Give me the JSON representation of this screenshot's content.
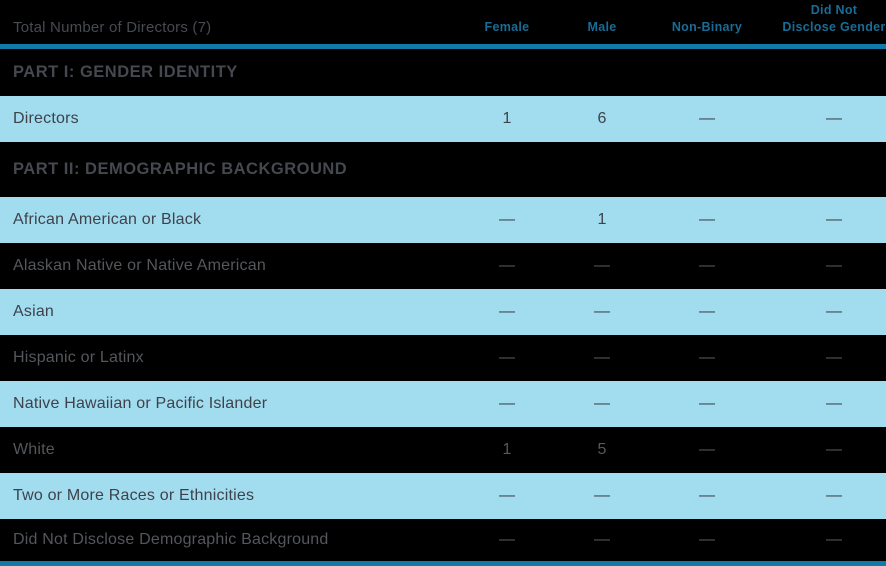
{
  "table": {
    "title": "Total Number of Directors (7)",
    "columns": [
      "Female",
      "Male",
      "Non-Binary",
      "Did Not Disclose Gender"
    ],
    "sections": [
      {
        "heading": "PART I: GENDER IDENTITY",
        "rows": [
          {
            "label": "Directors",
            "values": [
              "1",
              "6",
              "—",
              "—"
            ]
          }
        ]
      },
      {
        "heading": "PART II: DEMOGRAPHIC BACKGROUND",
        "rows": [
          {
            "label": "African American or Black",
            "values": [
              "—",
              "1",
              "—",
              "—"
            ]
          },
          {
            "label": "Alaskan Native or Native American",
            "values": [
              "—",
              "—",
              "—",
              "—"
            ]
          },
          {
            "label": "Asian",
            "values": [
              "—",
              "—",
              "—",
              "—"
            ]
          },
          {
            "label": "Hispanic or Latinx",
            "values": [
              "—",
              "—",
              "—",
              "—"
            ]
          },
          {
            "label": "Native Hawaiian or Pacific Islander",
            "values": [
              "—",
              "—",
              "—",
              "—"
            ]
          },
          {
            "label": "White",
            "values": [
              "1",
              "5",
              "—",
              "—"
            ]
          },
          {
            "label": "Two or More Races or Ethnicities",
            "values": [
              "—",
              "—",
              "—",
              "—"
            ]
          },
          {
            "label": "Did Not Disclose Demographic Background",
            "values": [
              "—",
              "—",
              "—",
              "—"
            ]
          }
        ]
      }
    ],
    "colors": {
      "background": "#000000",
      "row_highlight_blue": "#A1DCEF",
      "accent_line_blue": "#117AA9",
      "column_header_blue": "#186C96",
      "text_on_black": "#54575C",
      "text_on_blue": "#3F424A"
    }
  }
}
